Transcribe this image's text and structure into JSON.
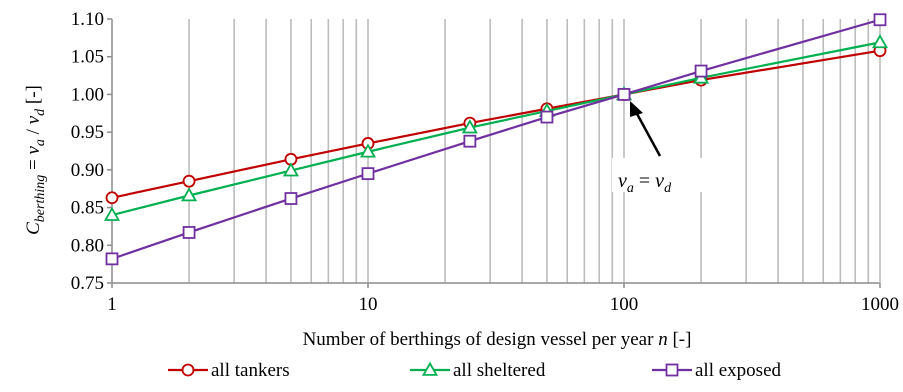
{
  "chart_data": {
    "type": "line",
    "x_scale": "log",
    "xlim": [
      1,
      1000
    ],
    "ylim": [
      0.75,
      1.1
    ],
    "x_ticks": [
      "1",
      "10",
      "100",
      "1000"
    ],
    "y_ticks": [
      "0.75",
      "0.80",
      "0.85",
      "0.90",
      "0.95",
      "1.00",
      "1.05",
      "1.10"
    ],
    "xlabel": {
      "pre": "Number of berthings of design vessel per year ",
      "var": "n",
      "post": " [-]"
    },
    "ylabel": {
      "c": "C",
      "c_sub": "berthing",
      "eq": " = ",
      "v1": "v",
      "v1_sub": "a",
      "slash": " / ",
      "v2": "v",
      "v2_sub": "d",
      "unit": " [-]"
    },
    "grid": "vertical minor lines at 1..9 x each decade",
    "annotation": {
      "v1": "v",
      "v1_sub": "a",
      "eq": " = ",
      "v2": "v",
      "v2_sub": "d",
      "points_to_x": 100,
      "points_to_y": 1.0
    },
    "x": [
      1,
      2,
      5,
      10,
      25,
      50,
      100,
      200,
      1000
    ],
    "series": [
      {
        "name": "all tankers",
        "color": "#c00000",
        "marker": "circle",
        "values": [
          0.863,
          0.885,
          0.914,
          0.935,
          0.962,
          0.981,
          1.0,
          1.019,
          1.058
        ]
      },
      {
        "name": "all sheltered",
        "color": "#00b050",
        "marker": "triangle",
        "values": [
          0.84,
          0.866,
          0.899,
          0.924,
          0.956,
          0.978,
          1.0,
          1.022,
          1.069
        ]
      },
      {
        "name": "all exposed",
        "color": "#7030a0",
        "marker": "square",
        "values": [
          0.782,
          0.817,
          0.862,
          0.895,
          0.938,
          0.97,
          1.0,
          1.031,
          1.099
        ]
      }
    ]
  }
}
